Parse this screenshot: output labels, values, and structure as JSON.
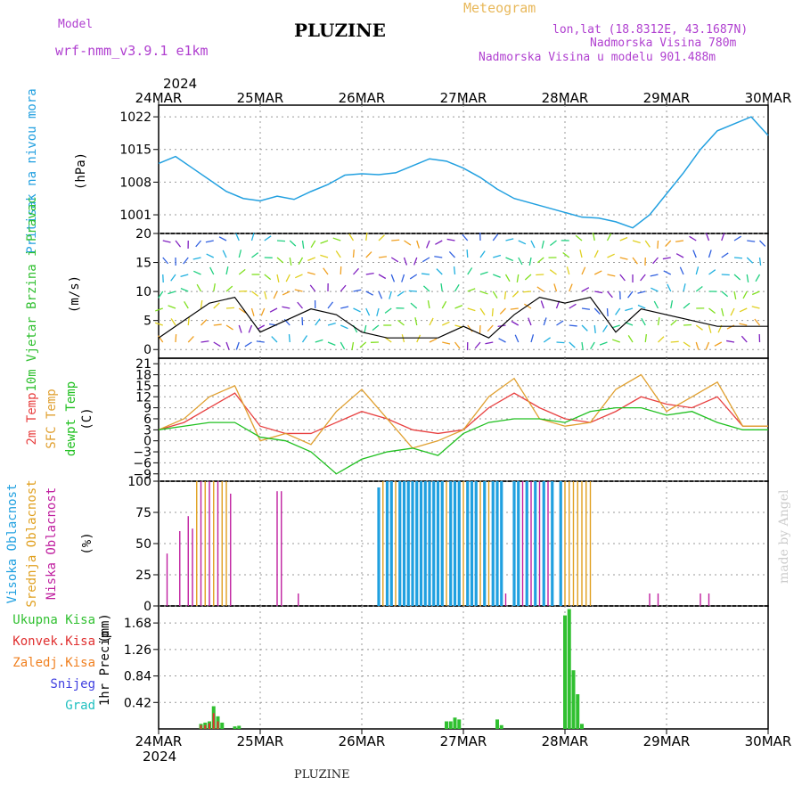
{
  "header": {
    "model_label": "Model",
    "model_name": "wrf-nmm_v3.9.1 e1km",
    "title": "PLUZINE",
    "meteogram": "Meteogram",
    "lonlat": "lon,lat (18.8312E, 43.1687N)",
    "altitude": "Nadmorska Visina 780m",
    "model_altitude": "Nadmorska Visina u modelu 901.488m"
  },
  "footer": {
    "title": "PLUZINE",
    "credit": "made by Angel"
  },
  "time_axis": {
    "year": "2024",
    "labels": [
      "24MAR",
      "25MAR",
      "26MAR",
      "27MAR",
      "28MAR",
      "29MAR",
      "30MAR"
    ]
  },
  "colors": {
    "pressure": "#22a0e0",
    "wind_speed": "#000000",
    "gust": "#e03030",
    "t2m": "#e84040",
    "sfc": "#e0a030",
    "dewpt": "#20c020",
    "high_cloud": "#20a0e0",
    "mid_cloud": "#e0a020",
    "low_cloud": "#c020a0",
    "precip_total": "#30c030",
    "precip_conv": "#e03030",
    "precip_frz": "#f08020",
    "snow": "#4040e0",
    "hail": "#20c0c0"
  },
  "chart_data": [
    {
      "type": "line",
      "ylabel": "Pritisak na nivou mora",
      "unit": "(hPa)",
      "yticks": [
        1001,
        1008,
        1015,
        1022
      ],
      "ylim": [
        997,
        1024.5
      ],
      "series": [
        {
          "x": [
            0,
            0.2,
            0.5,
            1,
            1.5,
            2,
            2.5,
            3,
            3.5,
            4,
            4.5,
            5,
            5.5,
            6
          ],
          "values": [
            1012,
            1013,
            1011,
            1007.5,
            1005,
            1004,
            1005,
            1007,
            1008.5,
            1009.3,
            1009.6,
            1009.6,
            1010,
            1010.5
          ],
          "hours": [
            0,
            4,
            8,
            12,
            16,
            20,
            24,
            28,
            32,
            36,
            40,
            44,
            48,
            52,
            56,
            60,
            64,
            68,
            72,
            76,
            80,
            84,
            88,
            92,
            96,
            100,
            104,
            108,
            112,
            116,
            120,
            124,
            128,
            132,
            136,
            140,
            144
          ],
          "p": [
            1012,
            1013.5,
            1011,
            1008.5,
            1006,
            1004.5,
            1004,
            1005,
            1004.3,
            1006,
            1007.5,
            1009.5,
            1009.8,
            1009.6,
            1010,
            1011.5,
            1013,
            1012.5,
            1011,
            1009,
            1006.5,
            1004.5,
            1003.5,
            1002.5,
            1001.5,
            1000.5,
            1000.3,
            999.5,
            998.2,
            1001,
            1005.5,
            1010,
            1015,
            1019,
            1020.5,
            1022,
            1018
          ]
        }
      ]
    },
    {
      "type": "line",
      "ylabel": "10m Vjetar Brzina i Pravac",
      "unit": "(m/s)",
      "yticks": [
        0,
        5,
        10,
        15,
        20
      ],
      "ylim": [
        -1.5,
        20
      ],
      "series": [
        {
          "name": "speed",
          "hours": [
            0,
            6,
            12,
            18,
            24,
            30,
            36,
            42,
            48,
            54,
            60,
            66,
            72,
            78,
            84,
            90,
            96,
            102,
            108,
            114,
            120,
            126,
            132,
            138,
            144
          ],
          "values": [
            2,
            5,
            8,
            9,
            3,
            5,
            7,
            6,
            3,
            2,
            2,
            2,
            4,
            2,
            6,
            9,
            8,
            9,
            3,
            7,
            6,
            5,
            4,
            4,
            4
          ]
        }
      ]
    },
    {
      "type": "line",
      "ylabel_2m": "2m Temp",
      "ylabel_sfc": "SFC Temp",
      "ylabel_dewpt": "dewpt Temp",
      "unit": "(C)",
      "yticks": [
        -9,
        -6,
        -3,
        0,
        3,
        6,
        9,
        12,
        15,
        18,
        21
      ],
      "ylim": [
        -11,
        22.5
      ],
      "hours": [
        0,
        6,
        12,
        18,
        24,
        30,
        36,
        42,
        48,
        54,
        60,
        66,
        72,
        78,
        84,
        90,
        96,
        102,
        108,
        114,
        120,
        126,
        132,
        138,
        144
      ],
      "t2m": [
        3,
        5,
        9,
        13,
        4,
        2,
        2,
        5,
        8,
        6,
        3,
        2,
        3,
        9,
        13,
        9,
        6,
        5,
        8,
        12,
        10,
        9,
        12,
        4,
        4
      ],
      "sfc": [
        3,
        6,
        12,
        15,
        0,
        2,
        -1,
        8,
        14,
        6,
        -2,
        0,
        3,
        12,
        17,
        6,
        4,
        5,
        14,
        18,
        8,
        12,
        16,
        4,
        4
      ],
      "dewpt": [
        3,
        4,
        5,
        5,
        1,
        0,
        -3,
        -9,
        -5,
        -3,
        -2,
        -4,
        2,
        5,
        6,
        6,
        5,
        8,
        9,
        9,
        7,
        8,
        5,
        3,
        3
      ]
    },
    {
      "type": "bar",
      "ylabel_high": "Visoka Oblacnost",
      "ylabel_mid": "Srednja Oblacnost",
      "ylabel_low": "Niska Oblacnost",
      "unit": "(%)",
      "yticks": [
        0,
        25,
        50,
        75,
        100
      ],
      "ylim": [
        0,
        100
      ],
      "low": [
        [
          2,
          42
        ],
        [
          5,
          60
        ],
        [
          7,
          72
        ],
        [
          8,
          62
        ],
        [
          10,
          100
        ],
        [
          12,
          100
        ],
        [
          14,
          100
        ],
        [
          17,
          90
        ],
        [
          28,
          92
        ],
        [
          29,
          92
        ],
        [
          33,
          10
        ],
        [
          82,
          10
        ],
        [
          86,
          100
        ],
        [
          88,
          100
        ],
        [
          90,
          100
        ],
        [
          92,
          100
        ],
        [
          116,
          10
        ],
        [
          118,
          10
        ],
        [
          128,
          10
        ],
        [
          130,
          10
        ]
      ],
      "mid": [
        [
          9,
          100
        ],
        [
          11,
          100
        ],
        [
          13,
          100
        ],
        [
          15,
          100
        ],
        [
          16,
          100
        ],
        [
          53,
          100
        ],
        [
          56,
          100
        ],
        [
          68,
          100
        ],
        [
          72,
          100
        ],
        [
          76,
          100
        ],
        [
          78,
          100
        ],
        [
          96,
          100
        ],
        [
          97,
          100
        ],
        [
          98,
          100
        ],
        [
          99,
          100
        ],
        [
          100,
          100
        ],
        [
          101,
          100
        ],
        [
          102,
          100
        ]
      ],
      "high": [
        [
          52,
          95
        ],
        [
          54,
          100
        ],
        [
          55,
          100
        ],
        [
          57,
          100
        ],
        [
          58,
          100
        ],
        [
          59,
          100
        ],
        [
          60,
          100
        ],
        [
          61,
          100
        ],
        [
          62,
          100
        ],
        [
          63,
          100
        ],
        [
          64,
          100
        ],
        [
          65,
          100
        ],
        [
          66,
          100
        ],
        [
          67,
          100
        ],
        [
          69,
          100
        ],
        [
          70,
          100
        ],
        [
          71,
          100
        ],
        [
          73,
          100
        ],
        [
          74,
          100
        ],
        [
          75,
          100
        ],
        [
          77,
          100
        ],
        [
          79,
          100
        ],
        [
          80,
          100
        ],
        [
          81,
          100
        ],
        [
          84,
          100
        ],
        [
          85,
          100
        ],
        [
          87,
          100
        ],
        [
          89,
          100
        ],
        [
          91,
          100
        ],
        [
          93,
          100
        ],
        [
          95,
          100
        ]
      ]
    },
    {
      "type": "bar",
      "ylabel": "1hr Precip",
      "unit": "(mm)",
      "legend": [
        "Ukupna Kisa",
        "Konvek.Kisa",
        "Zaledj.Kisa",
        "Snijeg",
        "Grad"
      ],
      "yticks": [
        0.42,
        0.84,
        1.26,
        1.68
      ],
      "ylim": [
        0,
        1.95
      ],
      "total": [
        [
          10,
          0.08
        ],
        [
          11,
          0.1
        ],
        [
          12,
          0.12
        ],
        [
          13,
          0.36
        ],
        [
          14,
          0.2
        ],
        [
          15,
          0.1
        ],
        [
          18,
          0.04
        ],
        [
          19,
          0.05
        ],
        [
          68,
          0.12
        ],
        [
          69,
          0.12
        ],
        [
          70,
          0.18
        ],
        [
          71,
          0.15
        ],
        [
          80,
          0.15
        ],
        [
          81,
          0.06
        ],
        [
          96,
          1.8
        ],
        [
          97,
          1.9
        ],
        [
          98,
          0.93
        ],
        [
          99,
          0.55
        ],
        [
          100,
          0.08
        ]
      ],
      "convective": [
        [
          10,
          0.06
        ],
        [
          11,
          0.06
        ],
        [
          12,
          0.09
        ],
        [
          13,
          0.25
        ],
        [
          14,
          0.12
        ]
      ]
    }
  ]
}
